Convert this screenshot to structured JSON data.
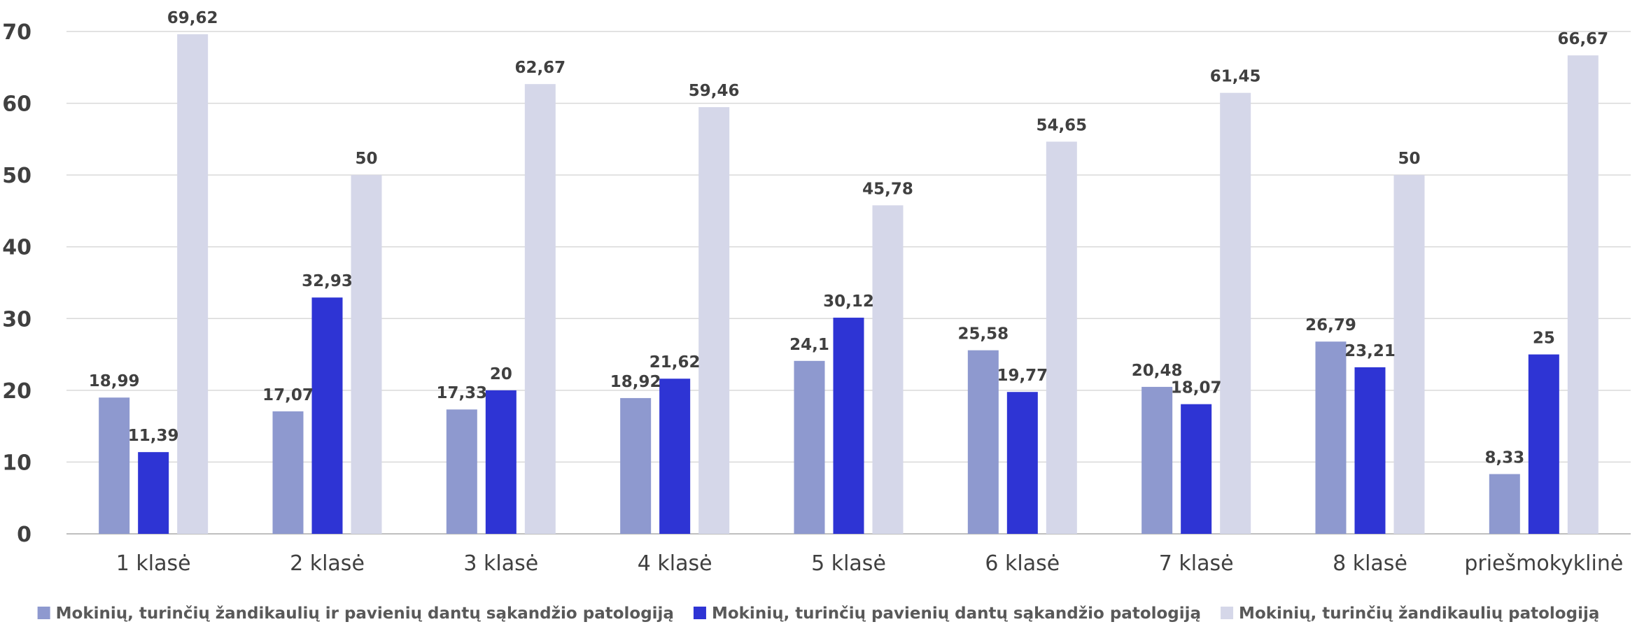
{
  "chart_data": {
    "type": "bar",
    "title": "",
    "xlabel": "",
    "ylabel": "",
    "ylim": [
      0,
      70
    ],
    "yticks": [
      0,
      10,
      20,
      30,
      40,
      50,
      60,
      70
    ],
    "grid": true,
    "legend_position": "bottom",
    "categories": [
      "1 klasė",
      "2 klasė",
      "3 klasė",
      "4 klasė",
      "5 klasė",
      "6 klasė",
      "7 klasė",
      "8 klasė",
      "priešmokyklinė"
    ],
    "series": [
      {
        "name": "Mokinių, turinčių žandikaulių ir pavienių dantų sąkandžio patologiją",
        "color": "#8E99CF",
        "values": [
          18.99,
          17.07,
          17.33,
          18.92,
          24.1,
          25.58,
          20.48,
          26.79,
          8.33
        ],
        "labels": [
          "18,99",
          "17,07",
          "17,33",
          "18,92",
          "24,1",
          "25,58",
          "20,48",
          "26,79",
          "8,33"
        ]
      },
      {
        "name": "Mokinių, turinčių pavienių dantų sąkandžio patologiją",
        "color": "#2E34D4",
        "values": [
          11.39,
          32.93,
          20,
          21.62,
          30.12,
          19.77,
          18.07,
          23.21,
          25
        ],
        "labels": [
          "11,39",
          "32,93",
          "20",
          "21,62",
          "30,12",
          "19,77",
          "18,07",
          "23,21",
          "25"
        ]
      },
      {
        "name": "Mokinių, turinčių žandikaulių patologiją",
        "color": "#D5D7E9",
        "values": [
          69.62,
          50,
          62.67,
          59.46,
          45.78,
          54.65,
          61.45,
          50,
          66.67
        ],
        "labels": [
          "69,62",
          "50",
          "62,67",
          "59,46",
          "45,78",
          "54,65",
          "61,45",
          "50",
          "66,67"
        ]
      }
    ],
    "gridline_color": "#D9D9D9",
    "axis_color": "#BFBFBF"
  }
}
